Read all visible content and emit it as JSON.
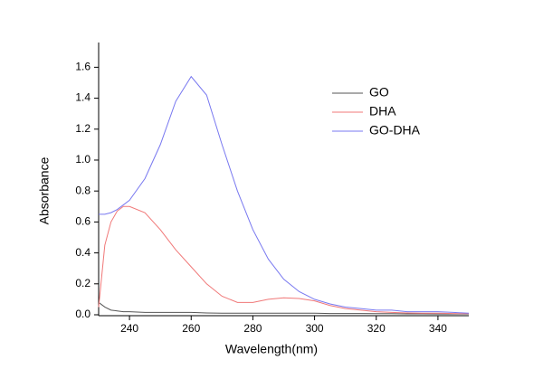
{
  "chart_data": {
    "type": "line",
    "x_label": "Wavelength(nm)",
    "y_label": "Absorbance",
    "x": [
      230,
      232,
      234,
      236,
      238,
      240,
      245,
      250,
      255,
      260,
      265,
      270,
      275,
      280,
      285,
      290,
      295,
      300,
      305,
      310,
      315,
      320,
      325,
      330,
      335,
      340,
      345,
      350
    ],
    "series": [
      {
        "name": "GO",
        "color": "#555555",
        "values": [
          0.08,
          0.05,
          0.03,
          0.025,
          0.02,
          0.02,
          0.015,
          0.015,
          0.015,
          0.015,
          0.012,
          0.01,
          0.01,
          0.01,
          0.01,
          0.01,
          0.01,
          0.01,
          0.008,
          0.008,
          0.008,
          0.007,
          0.007,
          0.006,
          0.006,
          0.005,
          0.005,
          0.005
        ]
      },
      {
        "name": "DHA",
        "color": "#f07878",
        "values": [
          0.05,
          0.45,
          0.6,
          0.67,
          0.7,
          0.7,
          0.66,
          0.55,
          0.42,
          0.31,
          0.2,
          0.12,
          0.08,
          0.08,
          0.1,
          0.11,
          0.105,
          0.09,
          0.06,
          0.04,
          0.03,
          0.02,
          0.015,
          0.012,
          0.01,
          0.01,
          0.008,
          0.007
        ]
      },
      {
        "name": "GO-DHA",
        "color": "#7878f0",
        "values": [
          0.65,
          0.65,
          0.66,
          0.68,
          0.71,
          0.74,
          0.88,
          1.1,
          1.38,
          1.54,
          1.42,
          1.1,
          0.8,
          0.55,
          0.36,
          0.23,
          0.15,
          0.1,
          0.07,
          0.05,
          0.04,
          0.03,
          0.03,
          0.02,
          0.02,
          0.02,
          0.015,
          0.01
        ]
      }
    ],
    "xlim": [
      230,
      350
    ],
    "ylim": [
      0,
      1.76
    ],
    "xticks": [
      240,
      260,
      280,
      300,
      320,
      340
    ],
    "yticks": [
      {
        "value": 0,
        "label": "0.0"
      },
      0.2,
      0.4,
      0.6,
      0.8,
      {
        "value": 1,
        "label": "1.0"
      },
      1.2,
      1.4,
      1.6
    ],
    "legend": "upper-right"
  }
}
